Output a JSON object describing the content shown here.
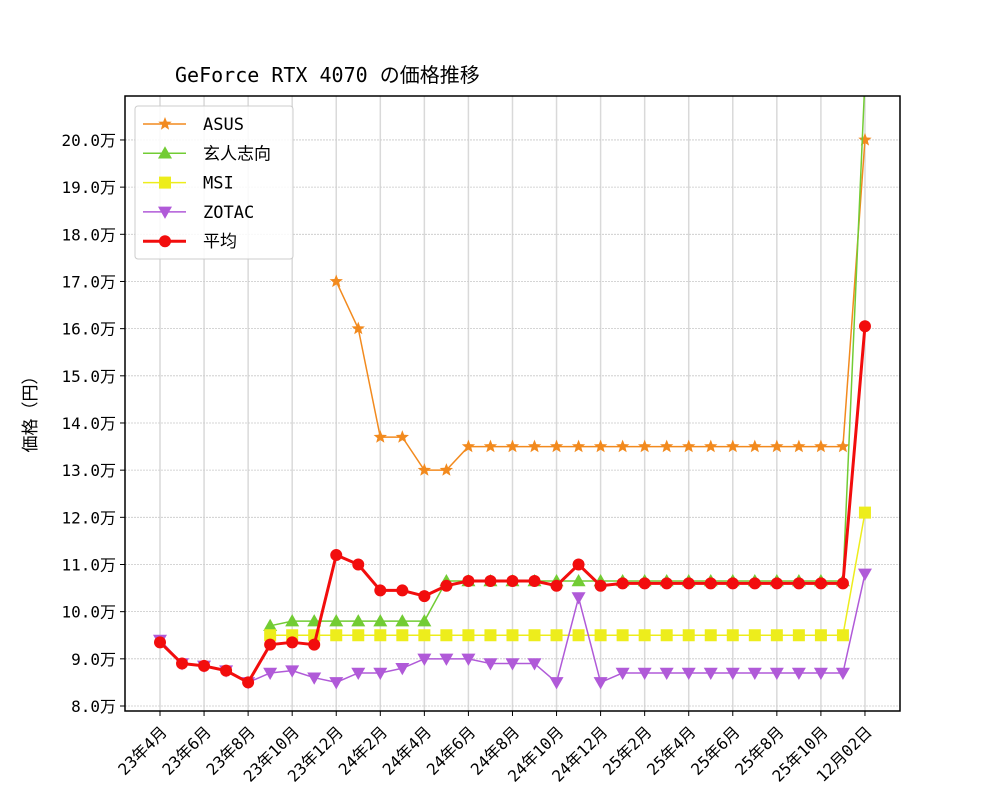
{
  "chart_data": {
    "type": "line",
    "title": "GeForce RTX 4070 の価格推移",
    "xlabel": "",
    "ylabel": "価格（円）",
    "ylim": [
      7.9,
      20.9
    ],
    "y_unit_suffix": "万",
    "yticks": [
      8.0,
      9.0,
      10.0,
      11.0,
      12.0,
      13.0,
      14.0,
      15.0,
      16.0,
      17.0,
      18.0,
      19.0,
      20.0
    ],
    "ytick_labels": [
      "8.0万",
      "9.0万",
      "10.0万",
      "11.0万",
      "12.0万",
      "13.0万",
      "14.0万",
      "15.0万",
      "16.0万",
      "17.0万",
      "18.0万",
      "19.0万",
      "20.0万"
    ],
    "x": [
      "23年4月",
      "23年5月",
      "23年6月",
      "23年7月",
      "23年8月",
      "23年9月",
      "23年10月",
      "23年11月",
      "23年12月",
      "24年1月",
      "24年2月",
      "24年3月",
      "24年4月",
      "24年5月",
      "24年6月",
      "24年7月",
      "24年8月",
      "24年9月",
      "24年10月",
      "24年11月",
      "24年12月",
      "25年1月",
      "25年2月",
      "25年3月",
      "25年4月",
      "25年5月",
      "25年6月",
      "25年7月",
      "25年8月",
      "25年9月",
      "25年10月",
      "25年11月",
      "12月02日"
    ],
    "xtick_indices": [
      0,
      2,
      4,
      6,
      8,
      10,
      12,
      14,
      16,
      18,
      20,
      22,
      24,
      26,
      28,
      30,
      32
    ],
    "xtick_labels": [
      "23年4月",
      "23年6月",
      "23年8月",
      "23年10月",
      "23年12月",
      "24年2月",
      "24年4月",
      "24年6月",
      "24年8月",
      "24年10月",
      "24年12月",
      "25年2月",
      "25年4月",
      "25年6月",
      "25年8月",
      "25年10月",
      "12月02日"
    ],
    "grid": true,
    "legend_position": "upper left",
    "series": [
      {
        "name": "ASUS",
        "color": "#f28a1e",
        "marker": "star",
        "linewidth": 1.5,
        "values": [
          null,
          null,
          null,
          null,
          null,
          null,
          null,
          null,
          17.0,
          16.0,
          13.7,
          13.7,
          13.0,
          13.0,
          13.5,
          13.5,
          13.5,
          13.5,
          13.5,
          13.5,
          13.5,
          13.5,
          13.5,
          13.5,
          13.5,
          13.5,
          13.5,
          13.5,
          13.5,
          13.5,
          13.5,
          13.5,
          20.0
        ]
      },
      {
        "name": "玄人志向",
        "color": "#72cc34",
        "marker": "triangle-up",
        "linewidth": 1.5,
        "values": [
          null,
          null,
          null,
          null,
          null,
          9.7,
          9.8,
          9.8,
          9.8,
          9.8,
          9.8,
          9.8,
          9.8,
          10.65,
          10.65,
          10.65,
          10.65,
          10.65,
          10.65,
          10.65,
          10.65,
          10.65,
          10.65,
          10.65,
          10.65,
          10.65,
          10.65,
          10.65,
          10.65,
          10.65,
          10.65,
          10.65,
          21.3
        ]
      },
      {
        "name": "MSI",
        "color": "#eded1c",
        "marker": "square",
        "linewidth": 1.5,
        "values": [
          null,
          null,
          null,
          null,
          null,
          9.5,
          9.5,
          9.5,
          9.5,
          9.5,
          9.5,
          9.5,
          9.5,
          9.5,
          9.5,
          9.5,
          9.5,
          9.5,
          9.5,
          9.5,
          9.5,
          9.5,
          9.5,
          9.5,
          9.5,
          9.5,
          9.5,
          9.5,
          9.5,
          9.5,
          9.5,
          9.5,
          12.1
        ]
      },
      {
        "name": "ZOTAC",
        "color": "#b05ad8",
        "marker": "triangle-down",
        "linewidth": 1.5,
        "values": [
          9.4,
          8.9,
          8.85,
          8.75,
          8.5,
          8.7,
          8.75,
          8.6,
          8.5,
          8.7,
          8.7,
          8.8,
          9.0,
          9.0,
          9.0,
          8.9,
          8.9,
          8.9,
          8.5,
          10.3,
          8.5,
          8.7,
          8.7,
          8.7,
          8.7,
          8.7,
          8.7,
          8.7,
          8.7,
          8.7,
          8.7,
          8.7,
          10.8
        ]
      },
      {
        "name": "平均",
        "color": "#f20d0d",
        "marker": "circle",
        "linewidth": 3,
        "values": [
          9.35,
          8.9,
          8.85,
          8.75,
          8.5,
          9.3,
          9.35,
          9.3,
          11.2,
          11.0,
          10.45,
          10.45,
          10.33,
          10.55,
          10.65,
          10.65,
          10.65,
          10.65,
          10.55,
          11.0,
          10.55,
          10.6,
          10.6,
          10.6,
          10.6,
          10.6,
          10.6,
          10.6,
          10.6,
          10.6,
          10.6,
          10.6,
          16.05
        ]
      }
    ]
  }
}
